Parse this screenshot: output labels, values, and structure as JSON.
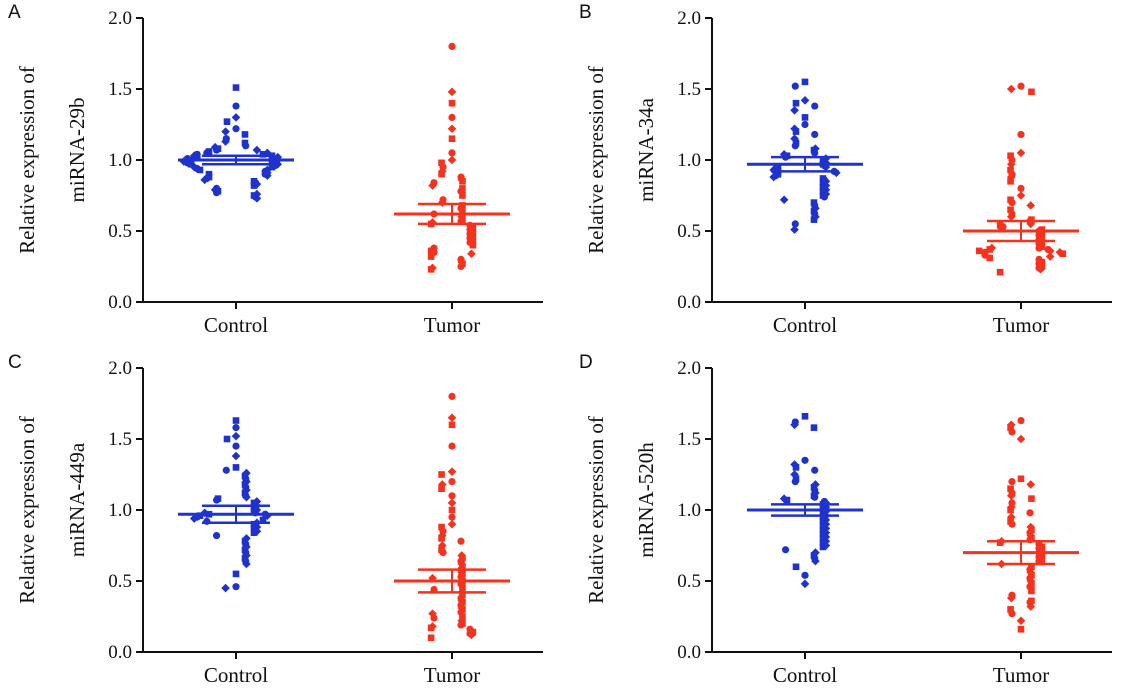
{
  "chart_data": [
    {
      "type": "scatter",
      "panel_label": "A",
      "ylabel_line1": "Relative expression of",
      "ylabel_line2": "miRNA-29b",
      "categories": [
        "Control",
        "Tumor"
      ],
      "ylim": [
        0,
        2.0
      ],
      "yticks": [
        "0.0",
        "0.5",
        "1.0",
        "1.5",
        "2.0"
      ],
      "series": [
        {
          "values": [
            1.51,
            1.38,
            1.3,
            1.27,
            1.22,
            1.2,
            1.18,
            1.15,
            1.13,
            1.12,
            1.1,
            1.09,
            1.08,
            1.07,
            1.07,
            1.06,
            1.05,
            1.05,
            1.04,
            1.04,
            1.03,
            1.03,
            1.02,
            1.02,
            1.01,
            1.01,
            1.0,
            1.0,
            0.99,
            0.99,
            0.98,
            0.98,
            0.97,
            0.97,
            0.96,
            0.95,
            0.95,
            0.94,
            0.93,
            0.93,
            0.92,
            0.91,
            0.9,
            0.9,
            0.89,
            0.88,
            0.87,
            0.86,
            0.85,
            0.84,
            0.83,
            0.82,
            0.8,
            0.79,
            0.78,
            0.77,
            0.76,
            0.75,
            0.74,
            0.73
          ],
          "mean": 1.0,
          "err": 0.03,
          "color": "#1f33cc"
        },
        {
          "values": [
            1.8,
            1.48,
            1.4,
            1.3,
            1.22,
            1.15,
            1.05,
            1.0,
            0.98,
            0.95,
            0.92,
            0.9,
            0.88,
            0.86,
            0.85,
            0.84,
            0.82,
            0.8,
            0.78,
            0.77,
            0.75,
            0.72,
            0.7,
            0.68,
            0.66,
            0.65,
            0.63,
            0.62,
            0.6,
            0.58,
            0.57,
            0.56,
            0.55,
            0.54,
            0.53,
            0.52,
            0.51,
            0.5,
            0.49,
            0.48,
            0.47,
            0.46,
            0.45,
            0.44,
            0.43,
            0.42,
            0.41,
            0.4,
            0.38,
            0.37,
            0.36,
            0.35,
            0.34,
            0.32,
            0.3,
            0.28,
            0.27,
            0.25,
            0.24,
            0.23
          ],
          "mean": 0.62,
          "err": 0.07,
          "color": "#f5321e"
        }
      ]
    },
    {
      "type": "scatter",
      "panel_label": "B",
      "ylabel_line1": "Relative expression of",
      "ylabel_line2": "miRNA-34a",
      "categories": [
        "Control",
        "Tumor"
      ],
      "ylim": [
        0,
        2.0
      ],
      "yticks": [
        "0.0",
        "0.5",
        "1.0",
        "1.5",
        "2.0"
      ],
      "series": [
        {
          "values": [
            1.55,
            1.52,
            1.42,
            1.4,
            1.38,
            1.35,
            1.3,
            1.25,
            1.22,
            1.2,
            1.18,
            1.15,
            1.12,
            1.1,
            1.08,
            1.07,
            1.05,
            1.04,
            1.03,
            1.02,
            1.01,
            1.0,
            0.99,
            0.98,
            0.97,
            0.96,
            0.95,
            0.95,
            0.94,
            0.93,
            0.92,
            0.92,
            0.91,
            0.9,
            0.89,
            0.88,
            0.87,
            0.86,
            0.85,
            0.84,
            0.83,
            0.82,
            0.81,
            0.8,
            0.79,
            0.78,
            0.77,
            0.76,
            0.75,
            0.74,
            0.72,
            0.7,
            0.68,
            0.66,
            0.64,
            0.62,
            0.6,
            0.58,
            0.55,
            0.51
          ],
          "mean": 0.97,
          "err": 0.05,
          "color": "#1f33cc"
        },
        {
          "values": [
            1.52,
            1.5,
            1.48,
            1.18,
            1.05,
            1.03,
            1.0,
            0.97,
            0.93,
            0.9,
            0.88,
            0.85,
            0.8,
            0.75,
            0.72,
            0.7,
            0.68,
            0.65,
            0.62,
            0.6,
            0.58,
            0.57,
            0.55,
            0.54,
            0.53,
            0.52,
            0.51,
            0.5,
            0.49,
            0.48,
            0.47,
            0.46,
            0.45,
            0.44,
            0.43,
            0.42,
            0.41,
            0.4,
            0.39,
            0.38,
            0.38,
            0.37,
            0.37,
            0.36,
            0.36,
            0.35,
            0.35,
            0.34,
            0.33,
            0.32,
            0.31,
            0.3,
            0.29,
            0.28,
            0.27,
            0.26,
            0.25,
            0.24,
            0.23,
            0.21
          ],
          "mean": 0.5,
          "err": 0.07,
          "color": "#f5321e"
        }
      ]
    },
    {
      "type": "scatter",
      "panel_label": "C",
      "ylabel_line1": "Relative expression of",
      "ylabel_line2": "miRNA-449a",
      "categories": [
        "Control",
        "Tumor"
      ],
      "ylim": [
        0,
        2.0
      ],
      "yticks": [
        "0.0",
        "0.5",
        "1.0",
        "1.5",
        "2.0"
      ],
      "series": [
        {
          "values": [
            1.63,
            1.58,
            1.52,
            1.5,
            1.45,
            1.38,
            1.3,
            1.28,
            1.26,
            1.24,
            1.22,
            1.2,
            1.18,
            1.16,
            1.14,
            1.12,
            1.1,
            1.09,
            1.08,
            1.07,
            1.06,
            1.05,
            1.04,
            1.03,
            1.02,
            1.01,
            1.0,
            0.99,
            0.98,
            0.98,
            0.97,
            0.97,
            0.96,
            0.96,
            0.95,
            0.94,
            0.93,
            0.92,
            0.91,
            0.9,
            0.89,
            0.88,
            0.87,
            0.86,
            0.85,
            0.84,
            0.82,
            0.8,
            0.78,
            0.76,
            0.74,
            0.72,
            0.7,
            0.68,
            0.66,
            0.64,
            0.62,
            0.55,
            0.46,
            0.45
          ],
          "mean": 0.97,
          "err": 0.06,
          "color": "#1f33cc"
        },
        {
          "values": [
            1.8,
            1.65,
            1.6,
            1.45,
            1.27,
            1.25,
            1.2,
            1.18,
            1.15,
            1.1,
            1.05,
            1.0,
            0.95,
            0.9,
            0.88,
            0.85,
            0.82,
            0.8,
            0.78,
            0.75,
            0.72,
            0.7,
            0.68,
            0.66,
            0.64,
            0.62,
            0.6,
            0.58,
            0.56,
            0.55,
            0.53,
            0.52,
            0.5,
            0.48,
            0.47,
            0.45,
            0.44,
            0.42,
            0.4,
            0.38,
            0.36,
            0.35,
            0.33,
            0.31,
            0.3,
            0.28,
            0.27,
            0.25,
            0.24,
            0.22,
            0.2,
            0.19,
            0.18,
            0.17,
            0.16,
            0.15,
            0.14,
            0.13,
            0.12,
            0.1
          ],
          "mean": 0.5,
          "err": 0.08,
          "color": "#f5321e"
        }
      ]
    },
    {
      "type": "scatter",
      "panel_label": "D",
      "ylabel_line1": "Relative expression of",
      "ylabel_line2": "miRNA-520h",
      "categories": [
        "Control",
        "Tumor"
      ],
      "ylim": [
        0,
        2.0
      ],
      "yticks": [
        "0.0",
        "0.5",
        "1.0",
        "1.5",
        "2.0"
      ],
      "series": [
        {
          "values": [
            1.66,
            1.62,
            1.6,
            1.58,
            1.35,
            1.32,
            1.3,
            1.28,
            1.25,
            1.22,
            1.2,
            1.18,
            1.16,
            1.14,
            1.12,
            1.1,
            1.09,
            1.08,
            1.07,
            1.06,
            1.05,
            1.04,
            1.03,
            1.02,
            1.01,
            1.0,
            0.99,
            0.98,
            0.97,
            0.96,
            0.95,
            0.94,
            0.93,
            0.92,
            0.91,
            0.9,
            0.89,
            0.88,
            0.87,
            0.86,
            0.85,
            0.84,
            0.83,
            0.82,
            0.81,
            0.8,
            0.79,
            0.78,
            0.77,
            0.76,
            0.75,
            0.74,
            0.72,
            0.7,
            0.68,
            0.66,
            0.64,
            0.6,
            0.54,
            0.48
          ],
          "mean": 1.0,
          "err": 0.04,
          "color": "#1f33cc"
        },
        {
          "values": [
            1.63,
            1.6,
            1.58,
            1.55,
            1.5,
            1.22,
            1.2,
            1.18,
            1.15,
            1.12,
            1.1,
            1.08,
            1.05,
            1.02,
            1.0,
            0.98,
            0.95,
            0.92,
            0.9,
            0.88,
            0.86,
            0.84,
            0.82,
            0.8,
            0.79,
            0.78,
            0.77,
            0.76,
            0.75,
            0.74,
            0.73,
            0.72,
            0.71,
            0.7,
            0.69,
            0.68,
            0.67,
            0.66,
            0.65,
            0.64,
            0.62,
            0.6,
            0.58,
            0.56,
            0.54,
            0.52,
            0.5,
            0.48,
            0.46,
            0.45,
            0.43,
            0.4,
            0.38,
            0.36,
            0.35,
            0.32,
            0.3,
            0.27,
            0.22,
            0.16
          ],
          "mean": 0.7,
          "err": 0.08,
          "color": "#f5321e"
        }
      ]
    }
  ]
}
